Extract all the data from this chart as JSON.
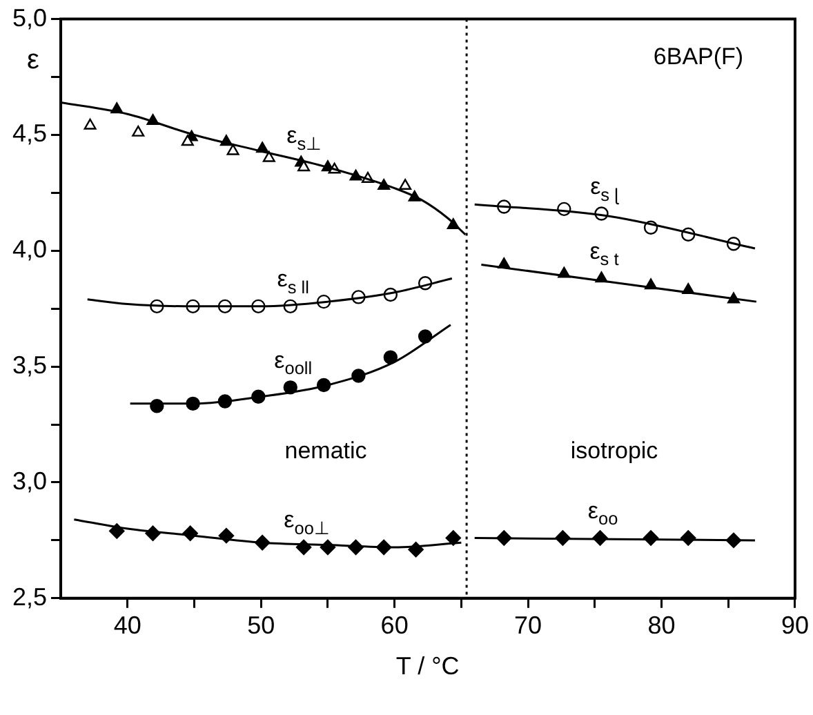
{
  "chart_data": {
    "type": "scatter",
    "xlabel": "T / °C",
    "ylabel": "ε",
    "xlim": [
      35,
      90
    ],
    "xticks": [
      40,
      {
        "value": 45,
        "label": null
      },
      50,
      {
        "value": 55,
        "label": null
      },
      60,
      {
        "value": 65,
        "label": null
      },
      70,
      {
        "value": 75,
        "label": null
      },
      80,
      {
        "value": 85,
        "label": null
      },
      90
    ],
    "ylim": [
      2.5,
      5.0
    ],
    "yticks": [
      {
        "value": 2.5,
        "label": "2,5"
      },
      {
        "value": 2.75,
        "label": null
      },
      {
        "value": 3.0,
        "label": "3,0"
      },
      {
        "value": 3.25,
        "label": null
      },
      {
        "value": 3.5,
        "label": "3,5"
      },
      {
        "value": 3.75,
        "label": null
      },
      {
        "value": 4.0,
        "label": "4,0"
      },
      {
        "value": 4.25,
        "label": null
      },
      {
        "value": 4.5,
        "label": "4,5"
      },
      {
        "value": 4.75,
        "label": null
      },
      {
        "value": 5.0,
        "label": "5,0"
      }
    ],
    "grid": false,
    "legend": false,
    "series": [
      {
        "type": "line",
        "color": "#000000",
        "marker": "none",
        "x": [
          35,
          40,
          45,
          50,
          55,
          60,
          62,
          64,
          65.3
        ],
        "values": [
          4.64,
          4.59,
          4.5,
          4.43,
          4.36,
          4.27,
          4.22,
          4.14,
          4.07
        ]
      },
      {
        "type": "line",
        "color": "#000000",
        "marker": "none",
        "x": [
          37,
          40,
          45,
          50,
          55,
          60,
          64.3
        ],
        "values": [
          3.79,
          3.77,
          3.76,
          3.76,
          3.78,
          3.82,
          3.88
        ]
      },
      {
        "type": "line",
        "color": "#000000",
        "marker": "none",
        "x": [
          40.2,
          45,
          50,
          55,
          60,
          64.2
        ],
        "values": [
          3.34,
          3.34,
          3.37,
          3.42,
          3.52,
          3.68
        ]
      },
      {
        "type": "line",
        "color": "#000000",
        "marker": "none",
        "x": [
          36,
          40,
          45,
          50,
          55,
          60,
          65
        ],
        "values": [
          2.84,
          2.8,
          2.77,
          2.74,
          2.73,
          2.72,
          2.74
        ]
      },
      {
        "type": "line",
        "color": "#000000",
        "marker": "none",
        "x": [
          66,
          76,
          87
        ],
        "values": [
          4.2,
          4.15,
          4.01
        ]
      },
      {
        "type": "line",
        "color": "#000000",
        "marker": "none",
        "x": [
          66.5,
          87.1
        ],
        "values": [
          3.94,
          3.78
        ]
      },
      {
        "type": "line",
        "color": "#000000",
        "marker": "none",
        "x": [
          66,
          87
        ],
        "values": [
          2.76,
          2.75
        ]
      },
      {
        "color": "#ffffff",
        "marker": "triangle",
        "x": [
          37.2,
          40.8,
          44.5,
          47.9,
          50.6,
          53.2,
          55.5,
          58.0,
          60.8
        ],
        "values": [
          4.54,
          4.51,
          4.47,
          4.43,
          4.4,
          4.36,
          4.35,
          4.31,
          4.28
        ]
      },
      {
        "name": "ε$_{s⊥}$",
        "color": "#000000",
        "marker": "triangle",
        "x": [
          39.2,
          41.9,
          44.8,
          47.4,
          50.1,
          53.0,
          55.0,
          57.1,
          59.2,
          61.5,
          64.4
        ],
        "values": [
          4.61,
          4.56,
          4.49,
          4.47,
          4.44,
          4.38,
          4.36,
          4.32,
          4.28,
          4.23,
          4.11
        ]
      },
      {
        "name": "ε$_{s ll}$",
        "color": "#ffffff",
        "marker": "circle",
        "x": [
          42.2,
          44.9,
          47.3,
          49.8,
          52.2,
          54.7,
          57.3,
          59.7,
          62.3
        ],
        "values": [
          3.76,
          3.76,
          3.76,
          3.76,
          3.76,
          3.78,
          3.8,
          3.81,
          3.86
        ]
      },
      {
        "name": "ε$_{ooll}$",
        "color": "#000000",
        "marker": "circle",
        "x": [
          42.2,
          44.9,
          47.3,
          49.8,
          52.2,
          54.7,
          57.3,
          59.7,
          62.3
        ],
        "values": [
          3.33,
          3.34,
          3.35,
          3.37,
          3.41,
          3.42,
          3.46,
          3.54,
          3.63
        ]
      },
      {
        "name": "ε$_{oo⊥}$",
        "color": "#000000",
        "marker": "diamond",
        "x": [
          39.2,
          41.9,
          44.7,
          47.4,
          50.1,
          53.2,
          55.0,
          57.1,
          59.2,
          61.6,
          64.4
        ],
        "values": [
          2.79,
          2.78,
          2.78,
          2.77,
          2.74,
          2.72,
          2.72,
          2.72,
          2.72,
          2.71,
          2.76
        ]
      },
      {
        "name": "ε$_{s ɭ}$",
        "color": "#ffffff",
        "marker": "circle",
        "x": [
          68.2,
          72.7,
          75.5,
          79.2,
          82.0,
          85.4
        ],
        "values": [
          4.19,
          4.18,
          4.16,
          4.1,
          4.07,
          4.03
        ]
      },
      {
        "name": "ε$_{s t}$",
        "color": "#000000",
        "marker": "triangle",
        "x": [
          68.2,
          72.7,
          75.5,
          79.2,
          82.0,
          85.4
        ],
        "values": [
          3.94,
          3.9,
          3.88,
          3.85,
          3.83,
          3.79
        ]
      },
      {
        "name": "ε$_{oo}$",
        "color": "#000000",
        "marker": "diamond",
        "x": [
          68.2,
          72.6,
          75.4,
          79.2,
          82.0,
          85.4
        ],
        "values": [
          2.76,
          2.76,
          2.76,
          2.76,
          2.76,
          2.75
        ]
      }
    ],
    "ref_lines": [
      {
        "axis": "x",
        "value": 65.4,
        "line_style": "dotted",
        "color": "#000000"
      }
    ],
    "annotations": [
      "6BAP(F)",
      "nematic",
      "isotropic"
    ]
  }
}
